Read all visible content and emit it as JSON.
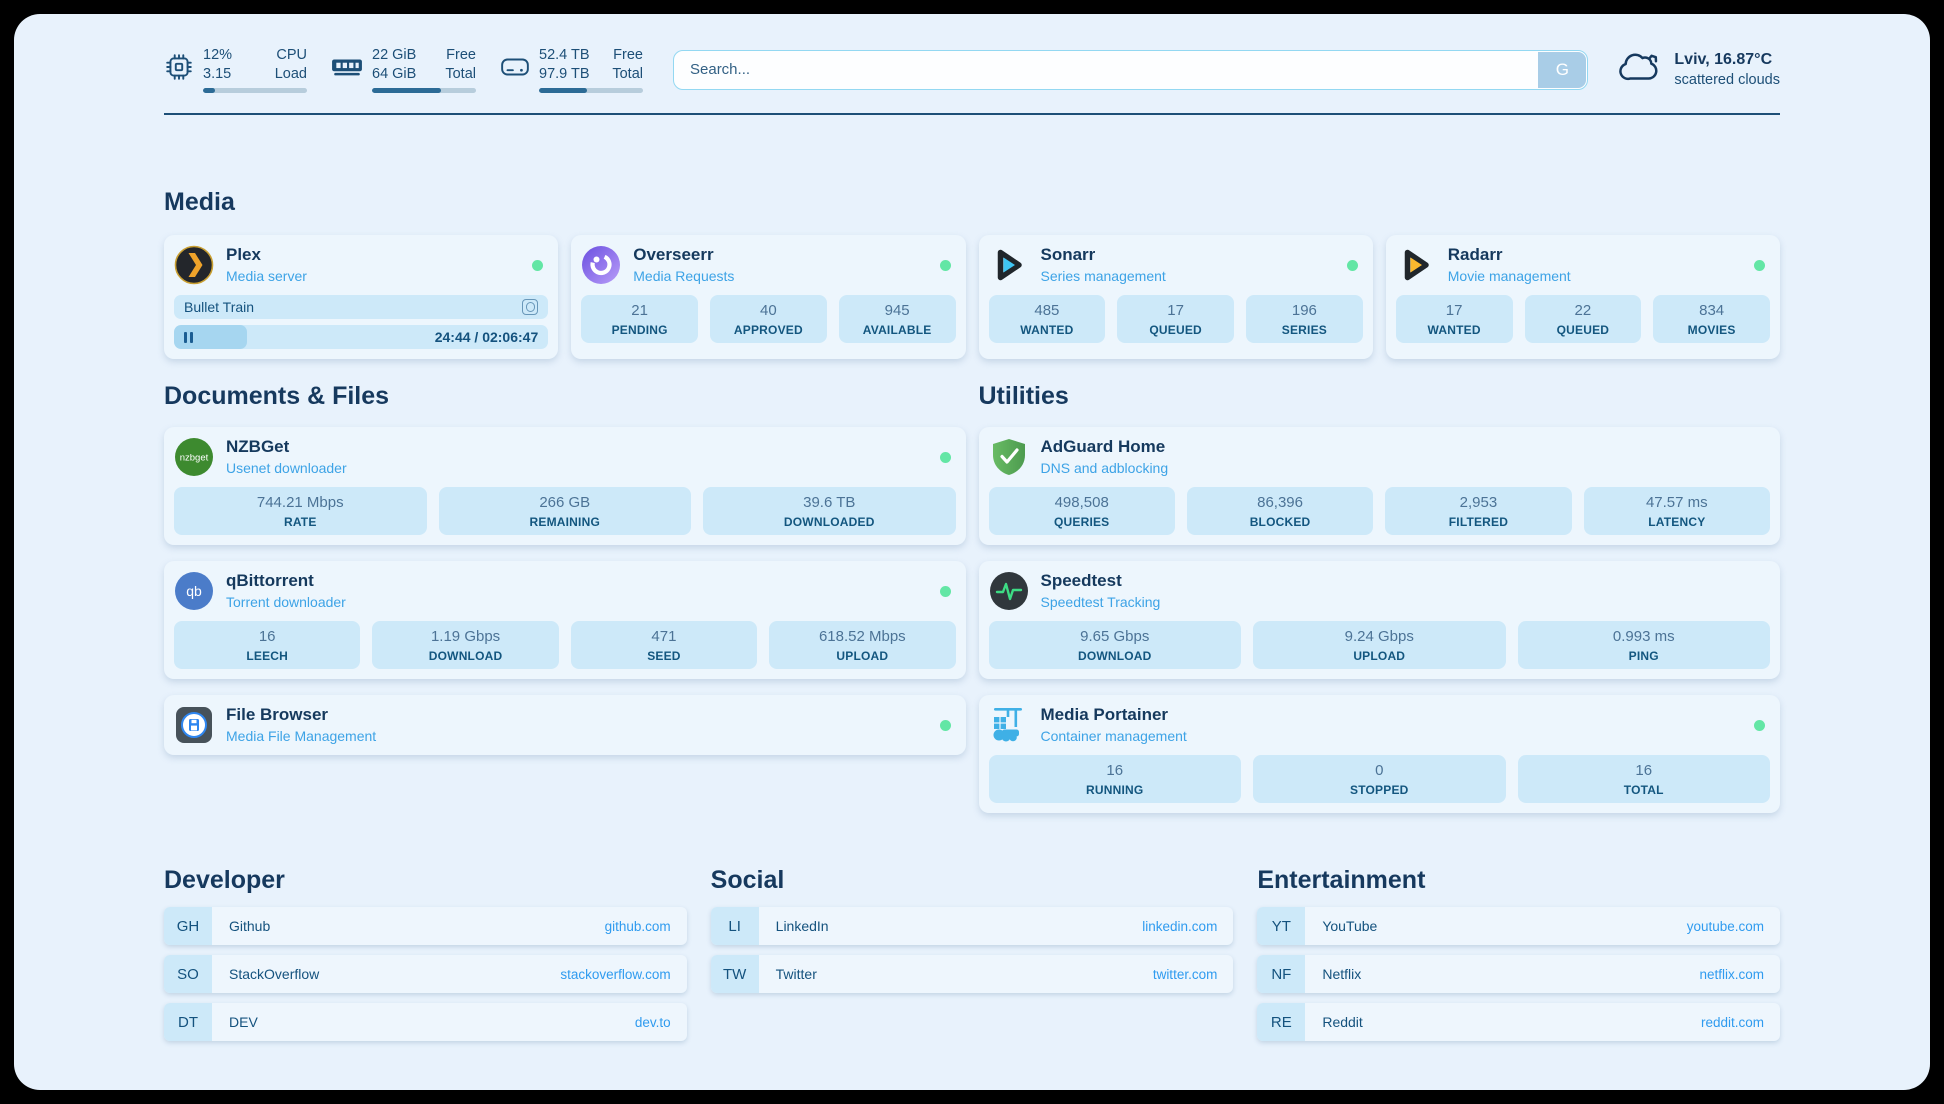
{
  "topbar": {
    "resources": [
      {
        "icon": "cpu-icon",
        "value1": "12%",
        "label1": "CPU",
        "value2": "3.15",
        "label2": "Load",
        "progress_pct": 12
      },
      {
        "icon": "memory-icon",
        "value1": "22 GiB",
        "label1": "Free",
        "value2": "64 GiB",
        "label2": "Total",
        "progress_pct": 66
      },
      {
        "icon": "disk-icon",
        "value1": "52.4 TB",
        "label1": "Free",
        "value2": "97.9 TB",
        "label2": "Total",
        "progress_pct": 46
      }
    ],
    "search": {
      "placeholder": "Search...",
      "provider_button": "G"
    },
    "weather": {
      "location": "Lviv, 16.87°C",
      "condition": "scattered clouds"
    }
  },
  "sections": {
    "media": {
      "title": "Media",
      "plex": {
        "title": "Plex",
        "subtitle": "Media server",
        "status": "online",
        "player": {
          "track": "Bullet Train",
          "elapsed_total": "24:44 / 02:06:47",
          "progress_pct": 19.5
        }
      },
      "overseerr": {
        "title": "Overseerr",
        "subtitle": "Media Requests",
        "status": "online",
        "stats": [
          {
            "value": "21",
            "label": "PENDING"
          },
          {
            "value": "40",
            "label": "APPROVED"
          },
          {
            "value": "945",
            "label": "AVAILABLE"
          }
        ]
      },
      "sonarr": {
        "title": "Sonarr",
        "subtitle": "Series management",
        "status": "online",
        "stats": [
          {
            "value": "485",
            "label": "WANTED"
          },
          {
            "value": "17",
            "label": "QUEUED"
          },
          {
            "value": "196",
            "label": "SERIES"
          }
        ]
      },
      "radarr": {
        "title": "Radarr",
        "subtitle": "Movie management",
        "status": "online",
        "stats": [
          {
            "value": "17",
            "label": "WANTED"
          },
          {
            "value": "22",
            "label": "QUEUED"
          },
          {
            "value": "834",
            "label": "MOVIES"
          }
        ]
      }
    },
    "documents": {
      "title": "Documents & Files",
      "nzbget": {
        "title": "NZBGet",
        "subtitle": "Usenet downloader",
        "status": "online",
        "stats": [
          {
            "value": "744.21 Mbps",
            "label": "RATE"
          },
          {
            "value": "266 GB",
            "label": "REMAINING"
          },
          {
            "value": "39.6 TB",
            "label": "DOWNLOADED"
          }
        ]
      },
      "qbittorrent": {
        "title": "qBittorrent",
        "subtitle": "Torrent downloader",
        "status": "online",
        "stats": [
          {
            "value": "16",
            "label": "LEECH"
          },
          {
            "value": "1.19 Gbps",
            "label": "DOWNLOAD"
          },
          {
            "value": "471",
            "label": "SEED"
          },
          {
            "value": "618.52 Mbps",
            "label": "UPLOAD"
          }
        ]
      },
      "filebrowser": {
        "title": "File Browser",
        "subtitle": "Media File Management",
        "status": "online"
      }
    },
    "utilities": {
      "title": "Utilities",
      "adguard": {
        "title": "AdGuard Home",
        "subtitle": "DNS and adblocking",
        "stats": [
          {
            "value": "498,508",
            "label": "QUERIES"
          },
          {
            "value": "86,396",
            "label": "BLOCKED"
          },
          {
            "value": "2,953",
            "label": "FILTERED"
          },
          {
            "value": "47.57 ms",
            "label": "LATENCY"
          }
        ]
      },
      "speedtest": {
        "title": "Speedtest",
        "subtitle": "Speedtest Tracking",
        "stats": [
          {
            "value": "9.65 Gbps",
            "label": "DOWNLOAD"
          },
          {
            "value": "9.24 Gbps",
            "label": "UPLOAD"
          },
          {
            "value": "0.993 ms",
            "label": "PING"
          }
        ]
      },
      "portainer": {
        "title": "Media Portainer",
        "subtitle": "Container management",
        "status": "online",
        "stats": [
          {
            "value": "16",
            "label": "RUNNING"
          },
          {
            "value": "0",
            "label": "STOPPED"
          },
          {
            "value": "16",
            "label": "TOTAL"
          }
        ]
      }
    }
  },
  "bookmarks": {
    "developer": {
      "title": "Developer",
      "items": [
        {
          "abbr": "GH",
          "name": "Github",
          "url": "github.com"
        },
        {
          "abbr": "SO",
          "name": "StackOverflow",
          "url": "stackoverflow.com"
        },
        {
          "abbr": "DT",
          "name": "DEV",
          "url": "dev.to"
        }
      ]
    },
    "social": {
      "title": "Social",
      "items": [
        {
          "abbr": "LI",
          "name": "LinkedIn",
          "url": "linkedin.com"
        },
        {
          "abbr": "TW",
          "name": "Twitter",
          "url": "twitter.com"
        }
      ]
    },
    "entertainment": {
      "title": "Entertainment",
      "items": [
        {
          "abbr": "YT",
          "name": "YouTube",
          "url": "youtube.com"
        },
        {
          "abbr": "NF",
          "name": "Netflix",
          "url": "netflix.com"
        },
        {
          "abbr": "RE",
          "name": "Reddit",
          "url": "reddit.com"
        }
      ]
    }
  },
  "colors": {
    "page_bg": "#e8f2fc",
    "card_bg": "#edf6fd",
    "stat_bg": "#cde9f9",
    "heading": "#16395e",
    "subtitle": "#3da3e6",
    "link": "#2f9bef",
    "status_online": "#63e6a5",
    "progress_fill": "#2c6b96"
  }
}
